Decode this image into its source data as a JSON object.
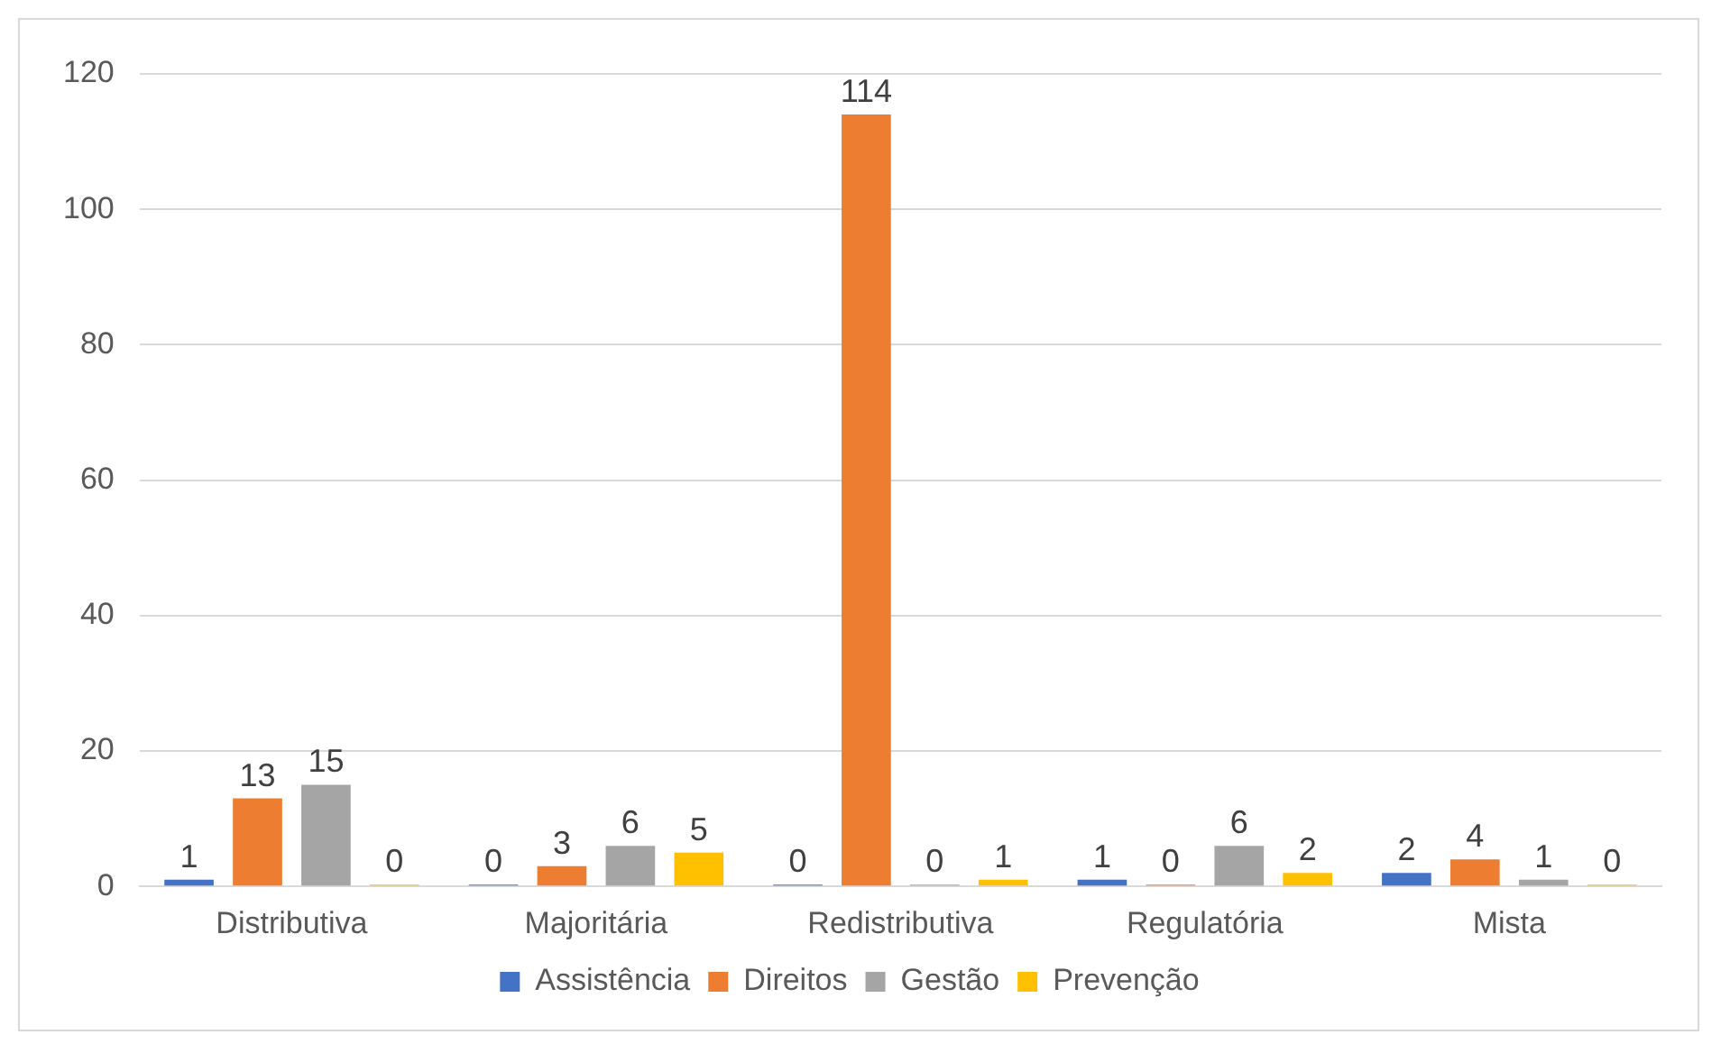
{
  "chart_data": {
    "type": "bar",
    "categories": [
      "Distributiva",
      "Majoritária",
      "Redistributiva",
      "Regulatória",
      "Mista"
    ],
    "series": [
      {
        "name": "Assistência",
        "color": "#4472c4",
        "values": [
          1,
          0,
          0,
          1,
          2
        ]
      },
      {
        "name": "Direitos",
        "color": "#ed7d31",
        "values": [
          13,
          3,
          114,
          0,
          4
        ]
      },
      {
        "name": "Gestão",
        "color": "#a5a5a5",
        "values": [
          15,
          6,
          0,
          6,
          1
        ]
      },
      {
        "name": "Prevenção",
        "color": "#ffc000",
        "values": [
          0,
          5,
          1,
          2,
          0
        ]
      }
    ],
    "ylim": [
      0,
      120
    ],
    "yticks": [
      0,
      20,
      40,
      60,
      80,
      100,
      120
    ],
    "grid": "y",
    "legend": "bottom",
    "data_labels": true
  }
}
